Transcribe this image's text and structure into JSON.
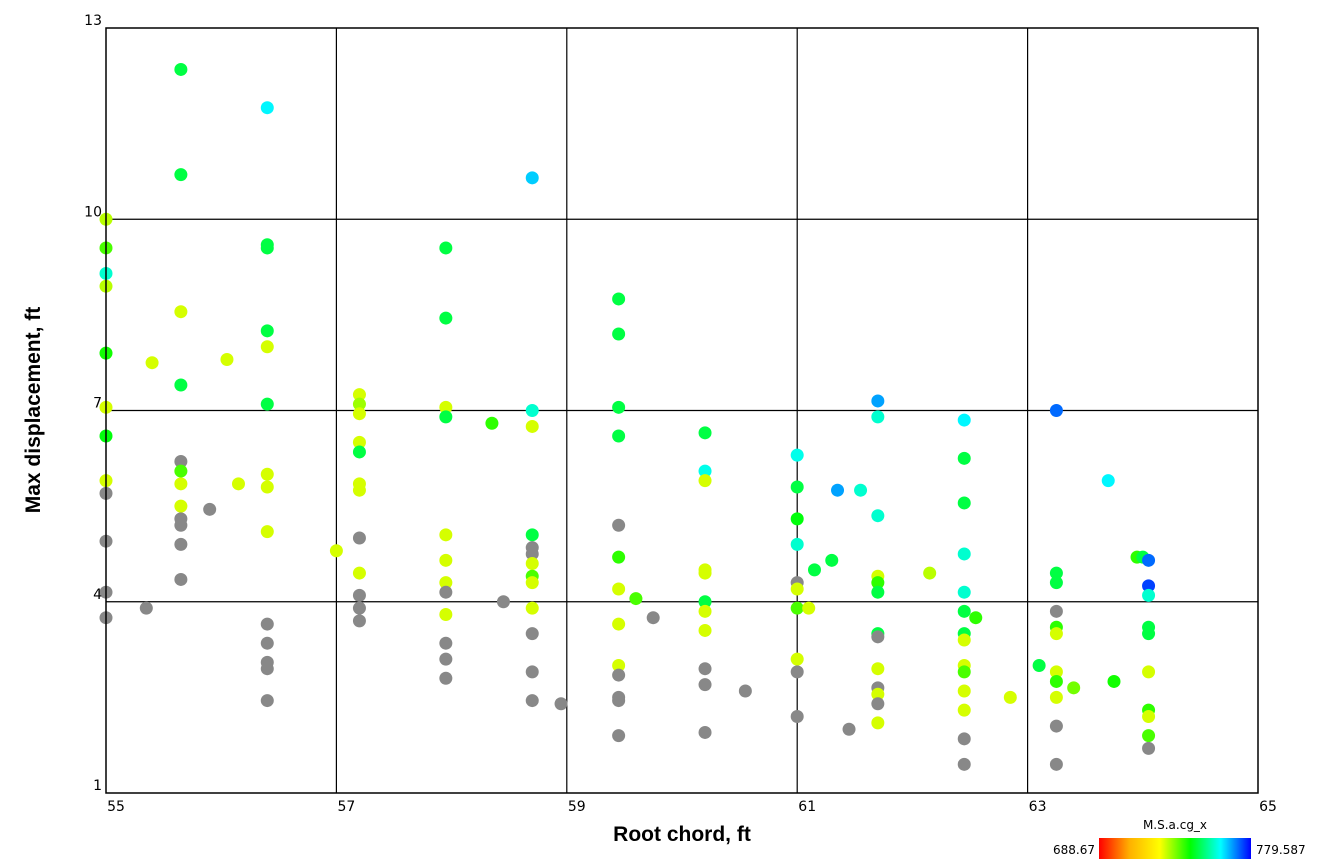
{
  "chart_data": {
    "type": "scatter",
    "xlabel": "Root chord, ft",
    "ylabel": "Max displacement, ft",
    "xlim": [
      55,
      65
    ],
    "ylim": [
      1,
      13
    ],
    "xticks": [
      "55",
      "57",
      "59",
      "61",
      "63",
      "65"
    ],
    "yticks": [
      "1",
      "4",
      "7",
      "10",
      "13"
    ],
    "grid": true,
    "colorbar": {
      "label": "M.S.a.cg_x",
      "min_label": "688.67",
      "max_label": "779.587",
      "min": 688.67,
      "max": 779.587,
      "placement": "bottom-right",
      "colors": [
        "#ff0000",
        "#ffb000",
        "#ffff00",
        "#00ff00",
        "#00ffff",
        "#0000ff"
      ]
    },
    "missing_color": "#888888",
    "points": [
      {
        "x": 55.0,
        "y": 10.0,
        "c": 730
      },
      {
        "x": 55.0,
        "y": 9.55,
        "c": 738
      },
      {
        "x": 55.0,
        "y": 9.15,
        "c": 758
      },
      {
        "x": 55.0,
        "y": 8.95,
        "c": 730
      },
      {
        "x": 55.0,
        "y": 7.9,
        "c": 742
      },
      {
        "x": 55.0,
        "y": 7.05,
        "c": 728
      },
      {
        "x": 55.0,
        "y": 6.6,
        "c": 744
      },
      {
        "x": 55.0,
        "y": 5.9,
        "c": 728
      },
      {
        "x": 55.0,
        "y": 5.7,
        "c": null
      },
      {
        "x": 55.0,
        "y": 4.95,
        "c": null
      },
      {
        "x": 55.0,
        "y": 4.15,
        "c": null
      },
      {
        "x": 55.0,
        "y": 3.75,
        "c": null
      },
      {
        "x": 55.35,
        "y": 3.9,
        "c": null
      },
      {
        "x": 55.4,
        "y": 7.75,
        "c": 728
      },
      {
        "x": 55.65,
        "y": 12.35,
        "c": 748
      },
      {
        "x": 55.65,
        "y": 10.7,
        "c": 748
      },
      {
        "x": 55.65,
        "y": 8.55,
        "c": 728
      },
      {
        "x": 55.65,
        "y": 7.4,
        "c": 748
      },
      {
        "x": 55.65,
        "y": 6.2,
        "c": null
      },
      {
        "x": 55.65,
        "y": 6.05,
        "c": 738
      },
      {
        "x": 55.65,
        "y": 5.85,
        "c": 728
      },
      {
        "x": 55.65,
        "y": 5.5,
        "c": 728
      },
      {
        "x": 55.65,
        "y": 5.3,
        "c": null
      },
      {
        "x": 55.65,
        "y": 5.2,
        "c": null
      },
      {
        "x": 55.65,
        "y": 4.9,
        "c": null
      },
      {
        "x": 55.65,
        "y": 4.35,
        "c": null
      },
      {
        "x": 55.9,
        "y": 5.45,
        "c": null
      },
      {
        "x": 56.05,
        "y": 7.8,
        "c": 728
      },
      {
        "x": 56.15,
        "y": 5.85,
        "c": 728
      },
      {
        "x": 56.4,
        "y": 11.75,
        "c": 762
      },
      {
        "x": 56.4,
        "y": 9.6,
        "c": 748
      },
      {
        "x": 56.4,
        "y": 9.55,
        "c": 748
      },
      {
        "x": 56.4,
        "y": 8.25,
        "c": 748
      },
      {
        "x": 56.4,
        "y": 8.0,
        "c": 728
      },
      {
        "x": 56.4,
        "y": 7.1,
        "c": 748
      },
      {
        "x": 56.4,
        "y": 6.0,
        "c": 728
      },
      {
        "x": 56.4,
        "y": 5.8,
        "c": 728
      },
      {
        "x": 56.4,
        "y": 5.1,
        "c": 728
      },
      {
        "x": 56.4,
        "y": 3.65,
        "c": null
      },
      {
        "x": 56.4,
        "y": 3.35,
        "c": null
      },
      {
        "x": 56.4,
        "y": 3.05,
        "c": null
      },
      {
        "x": 56.4,
        "y": 2.95,
        "c": null
      },
      {
        "x": 56.4,
        "y": 2.45,
        "c": null
      },
      {
        "x": 57.0,
        "y": 4.8,
        "c": 728
      },
      {
        "x": 57.2,
        "y": 7.25,
        "c": 728
      },
      {
        "x": 57.2,
        "y": 7.1,
        "c": 732
      },
      {
        "x": 57.2,
        "y": 6.95,
        "c": 728
      },
      {
        "x": 57.2,
        "y": 6.5,
        "c": 728
      },
      {
        "x": 57.2,
        "y": 6.35,
        "c": 748
      },
      {
        "x": 57.2,
        "y": 5.85,
        "c": 728
      },
      {
        "x": 57.2,
        "y": 5.75,
        "c": 728
      },
      {
        "x": 57.2,
        "y": 5.0,
        "c": null
      },
      {
        "x": 57.2,
        "y": 4.45,
        "c": 728
      },
      {
        "x": 57.2,
        "y": 4.1,
        "c": null
      },
      {
        "x": 57.2,
        "y": 3.9,
        "c": null
      },
      {
        "x": 57.2,
        "y": 3.7,
        "c": null
      },
      {
        "x": 57.95,
        "y": 9.55,
        "c": 748
      },
      {
        "x": 57.95,
        "y": 8.45,
        "c": 748
      },
      {
        "x": 57.95,
        "y": 7.05,
        "c": 728
      },
      {
        "x": 57.95,
        "y": 6.9,
        "c": 748
      },
      {
        "x": 57.95,
        "y": 5.05,
        "c": 728
      },
      {
        "x": 57.95,
        "y": 4.65,
        "c": 728
      },
      {
        "x": 57.95,
        "y": 4.3,
        "c": 728
      },
      {
        "x": 57.95,
        "y": 4.15,
        "c": null
      },
      {
        "x": 57.95,
        "y": 3.8,
        "c": 728
      },
      {
        "x": 57.95,
        "y": 3.35,
        "c": null
      },
      {
        "x": 57.95,
        "y": 3.1,
        "c": null
      },
      {
        "x": 57.95,
        "y": 2.8,
        "c": null
      },
      {
        "x": 58.35,
        "y": 6.8,
        "c": 740
      },
      {
        "x": 58.45,
        "y": 4.0,
        "c": null
      },
      {
        "x": 58.7,
        "y": 10.65,
        "c": 765
      },
      {
        "x": 58.7,
        "y": 7.0,
        "c": 758
      },
      {
        "x": 58.7,
        "y": 6.75,
        "c": 728
      },
      {
        "x": 58.7,
        "y": 5.05,
        "c": 748
      },
      {
        "x": 58.7,
        "y": 4.85,
        "c": null
      },
      {
        "x": 58.7,
        "y": 4.75,
        "c": null
      },
      {
        "x": 58.7,
        "y": 4.6,
        "c": 728
      },
      {
        "x": 58.7,
        "y": 4.4,
        "c": 738
      },
      {
        "x": 58.7,
        "y": 4.3,
        "c": 728
      },
      {
        "x": 58.7,
        "y": 3.9,
        "c": 728
      },
      {
        "x": 58.7,
        "y": 3.5,
        "c": null
      },
      {
        "x": 58.7,
        "y": 2.9,
        "c": null
      },
      {
        "x": 58.7,
        "y": 2.45,
        "c": null
      },
      {
        "x": 58.95,
        "y": 2.4,
        "c": null
      },
      {
        "x": 59.45,
        "y": 8.75,
        "c": 748
      },
      {
        "x": 59.45,
        "y": 8.2,
        "c": 748
      },
      {
        "x": 59.45,
        "y": 7.05,
        "c": 748
      },
      {
        "x": 59.45,
        "y": 6.6,
        "c": 748
      },
      {
        "x": 59.45,
        "y": 5.2,
        "c": null
      },
      {
        "x": 59.45,
        "y": 4.7,
        "c": 740
      },
      {
        "x": 59.45,
        "y": 4.2,
        "c": 728
      },
      {
        "x": 59.45,
        "y": 3.65,
        "c": 728
      },
      {
        "x": 59.45,
        "y": 3.0,
        "c": 728
      },
      {
        "x": 59.45,
        "y": 2.85,
        "c": null
      },
      {
        "x": 59.45,
        "y": 2.5,
        "c": null
      },
      {
        "x": 59.45,
        "y": 2.45,
        "c": null
      },
      {
        "x": 59.45,
        "y": 1.9,
        "c": null
      },
      {
        "x": 59.6,
        "y": 4.05,
        "c": 738
      },
      {
        "x": 59.75,
        "y": 3.75,
        "c": null
      },
      {
        "x": 60.2,
        "y": 6.65,
        "c": 748
      },
      {
        "x": 60.2,
        "y": 6.05,
        "c": 760
      },
      {
        "x": 60.2,
        "y": 5.9,
        "c": 728
      },
      {
        "x": 60.2,
        "y": 4.5,
        "c": 728
      },
      {
        "x": 60.2,
        "y": 4.45,
        "c": 728
      },
      {
        "x": 60.2,
        "y": 4.0,
        "c": 748
      },
      {
        "x": 60.2,
        "y": 3.85,
        "c": 728
      },
      {
        "x": 60.2,
        "y": 3.55,
        "c": 728
      },
      {
        "x": 60.2,
        "y": 2.95,
        "c": null
      },
      {
        "x": 60.2,
        "y": 2.7,
        "c": null
      },
      {
        "x": 60.2,
        "y": 1.95,
        "c": null
      },
      {
        "x": 60.55,
        "y": 2.6,
        "c": null
      },
      {
        "x": 61.0,
        "y": 6.3,
        "c": 760
      },
      {
        "x": 61.0,
        "y": 5.8,
        "c": 748
      },
      {
        "x": 61.0,
        "y": 5.3,
        "c": 744
      },
      {
        "x": 61.0,
        "y": 4.9,
        "c": 758
      },
      {
        "x": 61.0,
        "y": 4.3,
        "c": null
      },
      {
        "x": 61.0,
        "y": 4.2,
        "c": 728
      },
      {
        "x": 61.0,
        "y": 3.9,
        "c": 738
      },
      {
        "x": 61.0,
        "y": 3.1,
        "c": 728
      },
      {
        "x": 61.0,
        "y": 2.9,
        "c": null
      },
      {
        "x": 61.0,
        "y": 2.2,
        "c": null
      },
      {
        "x": 61.1,
        "y": 3.9,
        "c": 728
      },
      {
        "x": 61.15,
        "y": 4.5,
        "c": 748
      },
      {
        "x": 61.3,
        "y": 4.65,
        "c": 748
      },
      {
        "x": 61.35,
        "y": 5.75,
        "c": 768
      },
      {
        "x": 61.45,
        "y": 2.0,
        "c": null
      },
      {
        "x": 61.55,
        "y": 5.75,
        "c": 758
      },
      {
        "x": 61.7,
        "y": 7.15,
        "c": 768
      },
      {
        "x": 61.7,
        "y": 6.9,
        "c": 758
      },
      {
        "x": 61.7,
        "y": 5.35,
        "c": 758
      },
      {
        "x": 61.7,
        "y": 4.4,
        "c": 728
      },
      {
        "x": 61.7,
        "y": 4.3,
        "c": 740
      },
      {
        "x": 61.7,
        "y": 4.15,
        "c": 748
      },
      {
        "x": 61.7,
        "y": 3.5,
        "c": 748
      },
      {
        "x": 61.7,
        "y": 3.45,
        "c": null
      },
      {
        "x": 61.7,
        "y": 2.95,
        "c": 728
      },
      {
        "x": 61.7,
        "y": 2.65,
        "c": null
      },
      {
        "x": 61.7,
        "y": 2.55,
        "c": 728
      },
      {
        "x": 61.7,
        "y": 2.4,
        "c": null
      },
      {
        "x": 61.7,
        "y": 2.1,
        "c": 728
      },
      {
        "x": 62.15,
        "y": 4.45,
        "c": 730
      },
      {
        "x": 62.45,
        "y": 6.85,
        "c": 762
      },
      {
        "x": 62.45,
        "y": 6.25,
        "c": 748
      },
      {
        "x": 62.45,
        "y": 5.55,
        "c": 748
      },
      {
        "x": 62.45,
        "y": 4.75,
        "c": 758
      },
      {
        "x": 62.45,
        "y": 4.15,
        "c": 758
      },
      {
        "x": 62.45,
        "y": 3.85,
        "c": 748
      },
      {
        "x": 62.45,
        "y": 3.5,
        "c": 748
      },
      {
        "x": 62.45,
        "y": 3.4,
        "c": 728
      },
      {
        "x": 62.45,
        "y": 3.0,
        "c": 728
      },
      {
        "x": 62.45,
        "y": 2.9,
        "c": 738
      },
      {
        "x": 62.45,
        "y": 2.6,
        "c": 728
      },
      {
        "x": 62.45,
        "y": 2.3,
        "c": 728
      },
      {
        "x": 62.45,
        "y": 1.85,
        "c": null
      },
      {
        "x": 62.45,
        "y": 1.45,
        "c": null
      },
      {
        "x": 62.55,
        "y": 3.75,
        "c": 740
      },
      {
        "x": 62.85,
        "y": 2.5,
        "c": 728
      },
      {
        "x": 63.1,
        "y": 3.0,
        "c": 748
      },
      {
        "x": 63.25,
        "y": 7.0,
        "c": 772
      },
      {
        "x": 63.25,
        "y": 4.45,
        "c": 748
      },
      {
        "x": 63.25,
        "y": 4.3,
        "c": 748
      },
      {
        "x": 63.25,
        "y": 3.85,
        "c": null
      },
      {
        "x": 63.25,
        "y": 3.6,
        "c": 740
      },
      {
        "x": 63.25,
        "y": 3.5,
        "c": 728
      },
      {
        "x": 63.25,
        "y": 2.9,
        "c": 728
      },
      {
        "x": 63.25,
        "y": 2.75,
        "c": 740
      },
      {
        "x": 63.25,
        "y": 2.5,
        "c": 728
      },
      {
        "x": 63.25,
        "y": 2.05,
        "c": null
      },
      {
        "x": 63.25,
        "y": 1.45,
        "c": null
      },
      {
        "x": 63.4,
        "y": 2.65,
        "c": 735
      },
      {
        "x": 63.7,
        "y": 5.9,
        "c": 762
      },
      {
        "x": 63.75,
        "y": 2.75,
        "c": 742
      },
      {
        "x": 63.95,
        "y": 4.7,
        "c": 740
      },
      {
        "x": 64.0,
        "y": 4.7,
        "c": 748
      },
      {
        "x": 64.05,
        "y": 4.65,
        "c": 772
      },
      {
        "x": 64.05,
        "y": 4.25,
        "c": 775
      },
      {
        "x": 64.05,
        "y": 4.1,
        "c": 758
      },
      {
        "x": 64.05,
        "y": 3.6,
        "c": 748
      },
      {
        "x": 64.05,
        "y": 3.5,
        "c": 748
      },
      {
        "x": 64.05,
        "y": 2.9,
        "c": 728
      },
      {
        "x": 64.05,
        "y": 2.3,
        "c": 740
      },
      {
        "x": 64.05,
        "y": 2.2,
        "c": 728
      },
      {
        "x": 64.05,
        "y": 1.9,
        "c": 738
      },
      {
        "x": 64.05,
        "y": 1.7,
        "c": null
      }
    ]
  }
}
